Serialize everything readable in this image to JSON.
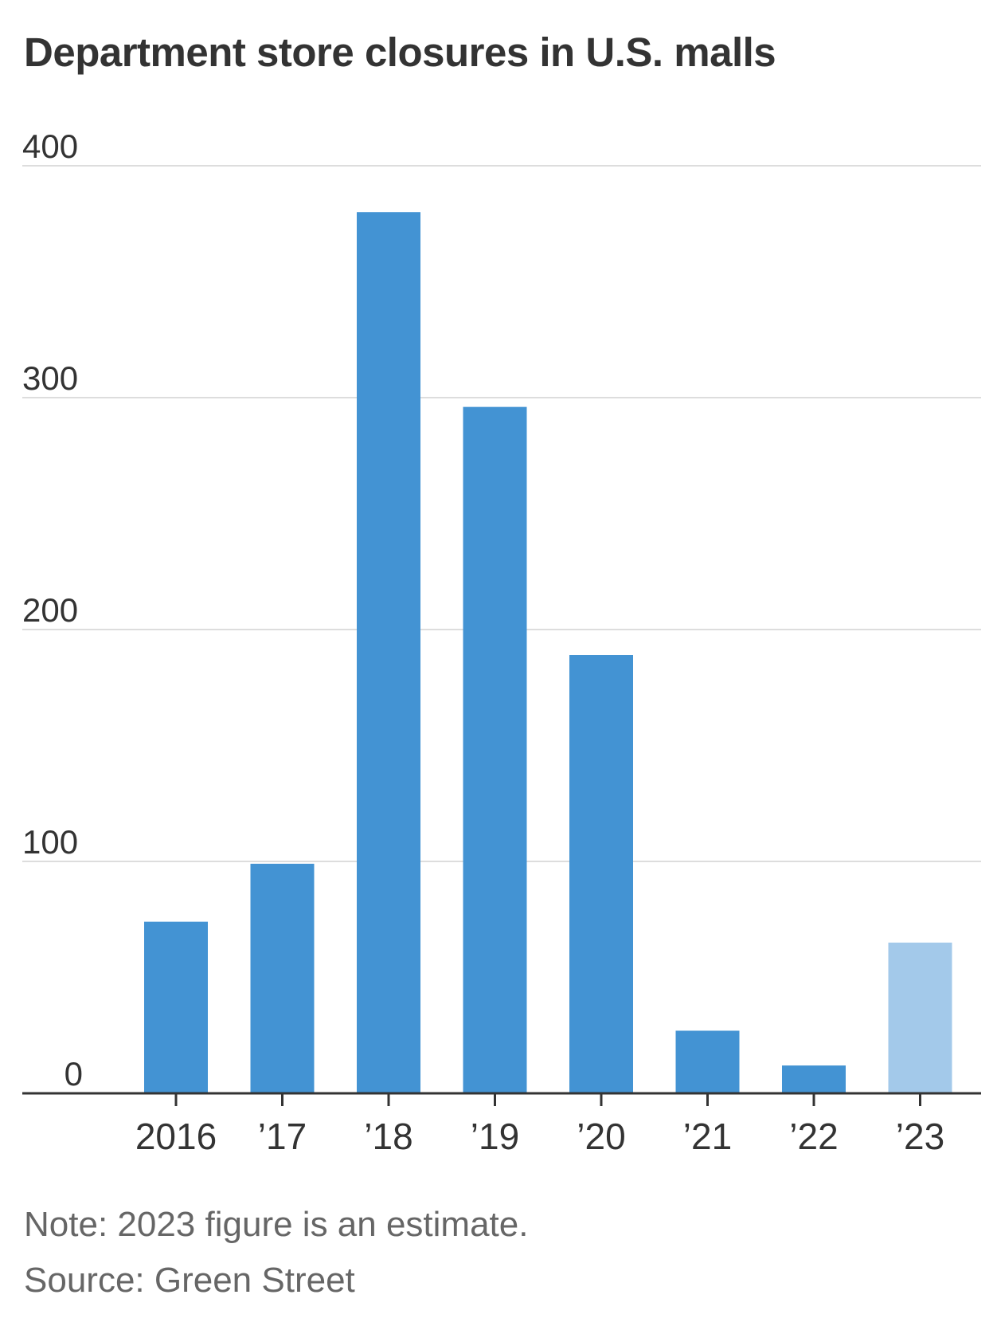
{
  "chart_data": {
    "type": "bar",
    "title": "Department store closures in U.S. malls",
    "categories": [
      "2016",
      "’17",
      "’18",
      "’19",
      "’20",
      "’21",
      "’22",
      "’23"
    ],
    "values": [
      74,
      99,
      380,
      296,
      189,
      27,
      12,
      65
    ],
    "estimated": [
      false,
      false,
      false,
      false,
      false,
      false,
      false,
      true
    ],
    "ylim": [
      0,
      400
    ],
    "yticks": [
      0,
      100,
      200,
      300,
      400
    ],
    "grid": true,
    "xlabel": "",
    "ylabel": "",
    "colors": {
      "bar": "#4393D3",
      "estimate_bar": "#A3C9EA",
      "grid": "#DDDDDD",
      "axis": "#333333"
    }
  },
  "note": "Note: 2023 figure is an estimate.",
  "source": "Source: Green Street"
}
